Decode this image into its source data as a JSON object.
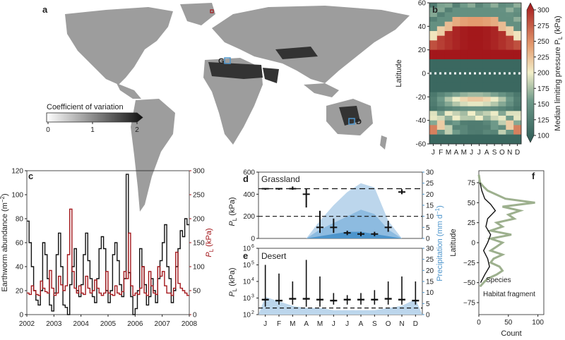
{
  "panel_labels": {
    "a": "a",
    "b": "b",
    "c": "c",
    "d": "d",
    "e": "e",
    "f": "f"
  },
  "colors": {
    "earthworm": "#111111",
    "limiting_pressure": "#a3171b",
    "precip": "#4d95cc",
    "precip_light": "#bcd6ec",
    "grass": "#9db08e",
    "heat_low": "#2e5b55",
    "heat_high": "#a3171b"
  },
  "map_a": {
    "colorbar_label": "Coefficient of variation",
    "colorbar_ticks": [
      "0",
      "1",
      "2"
    ],
    "site_labels": [
      "G",
      "D"
    ]
  },
  "chart_data": [
    {
      "panel": "b",
      "type": "heatmap",
      "months": [
        "J",
        "F",
        "M",
        "A",
        "M",
        "J",
        "J",
        "A",
        "S",
        "O",
        "N",
        "D"
      ],
      "ylabel": "Latitude",
      "ylim": [
        -60,
        60
      ],
      "yticks": [
        "60",
        "40",
        "20",
        "0",
        "-20",
        "-40",
        "-60"
      ],
      "colorbar_label": "Median limiting pressure P",
      "colorbar_label_sub": "L",
      "colorbar_unit": " (kPa)",
      "colorbar_ticks": [
        "300",
        "275",
        "250",
        "225",
        "200",
        "175",
        "150",
        "125",
        "100"
      ],
      "crange": [
        100,
        300
      ]
    },
    {
      "panel": "c",
      "type": "line",
      "x_ticks": [
        "2002",
        "2003",
        "2004",
        "2005",
        "2006",
        "2007",
        "2008"
      ],
      "xlim": [
        2002,
        2008
      ],
      "ylabel_left": "Earthworm abundance (m",
      "ylabel_left_sup": "−2",
      "ylabel_left_end": ")",
      "ylim_left": [
        0,
        120
      ],
      "yticks_left": [
        "0",
        "20",
        "40",
        "60",
        "80",
        "100",
        "120"
      ],
      "ylabel_right_p": "P",
      "ylabel_right_sub": "L",
      "ylabel_right_end": " (kPa)",
      "ylim_right": [
        0,
        300
      ],
      "yticks_right": [
        "0",
        "50",
        "100",
        "150",
        "200",
        "250",
        "300"
      ],
      "series": [
        {
          "name": "earthworm",
          "axis": "left",
          "values": [
            78,
            60,
            40,
            20,
            12,
            8,
            20,
            60,
            50,
            30,
            8,
            3,
            18,
            50,
            68,
            40,
            8,
            6,
            0,
            25,
            40,
            55,
            20,
            15,
            25,
            50,
            68,
            45,
            30,
            15,
            10,
            30,
            55,
            65,
            55,
            20,
            10,
            20,
            50,
            60,
            45,
            25,
            15,
            30,
            117,
            35,
            15,
            0,
            5,
            20,
            55,
            40,
            25,
            8,
            15,
            30,
            20,
            10,
            30,
            45,
            60,
            75,
            40,
            30,
            10,
            20,
            40,
            55,
            70,
            65,
            80,
            75
          ]
        },
        {
          "name": "limiting_pressure",
          "axis": "right",
          "values": [
            45,
            42,
            60,
            50,
            42,
            40,
            70,
            55,
            48,
            45,
            92,
            55,
            40,
            45,
            80,
            62,
            50,
            60,
            125,
            220,
            90,
            55,
            45,
            60,
            45,
            42,
            80,
            55,
            45,
            50,
            72,
            55,
            45,
            40,
            45,
            90,
            45,
            42,
            40,
            60,
            45,
            42,
            48,
            90,
            75,
            170,
            60,
            40,
            45,
            42,
            55,
            100,
            45,
            40,
            90,
            60,
            45,
            42,
            100,
            80,
            90,
            60,
            45,
            45,
            40,
            55,
            130,
            65,
            55,
            50,
            45,
            40
          ]
        }
      ]
    },
    {
      "panel": "d",
      "type": "area",
      "title": "Grassland",
      "months": [
        "J",
        "F",
        "M",
        "A",
        "M",
        "J",
        "J",
        "A",
        "S",
        "O",
        "N",
        "D"
      ],
      "ylabel_left_p": "P",
      "ylabel_left_sub": "L",
      "ylabel_left_end": " (kPa)",
      "ylim_left": [
        0,
        600
      ],
      "yticks_left": [
        "0",
        "200",
        "400",
        "600"
      ],
      "ylim_right": [
        0,
        30
      ],
      "yticks_right": [
        "0",
        "5",
        "10",
        "15",
        "20",
        "25",
        "30"
      ],
      "upper_dash": 450,
      "lower_dash": 200,
      "box_medians": [
        450,
        450,
        450,
        400,
        100,
        100,
        50,
        40,
        40,
        100,
        420,
        null
      ],
      "box_low": [
        440,
        440,
        440,
        280,
        50,
        50,
        30,
        20,
        20,
        60,
        400,
        null
      ],
      "box_high": [
        455,
        455,
        470,
        450,
        250,
        180,
        70,
        60,
        60,
        160,
        445,
        null
      ],
      "precip_high": [
        0,
        0,
        0,
        0,
        8,
        15,
        21,
        25,
        23,
        8,
        0,
        0
      ],
      "precip_mid": [
        0,
        0,
        0,
        0,
        4,
        7,
        10,
        13,
        11,
        4,
        0,
        0
      ],
      "precip_low": [
        0,
        0,
        0,
        0,
        1,
        2,
        3,
        3,
        2,
        1,
        0,
        0
      ]
    },
    {
      "panel": "e",
      "type": "area",
      "title": "Desert",
      "months": [
        "J",
        "F",
        "M",
        "A",
        "M",
        "J",
        "J",
        "A",
        "S",
        "O",
        "N",
        "D"
      ],
      "ylabel_left_p": "P",
      "ylabel_left_sub": "L",
      "ylabel_left_end": " (kPa)",
      "ylim_left_log": [
        2,
        6
      ],
      "yticks_left": [
        "10",
        "10",
        "10",
        "10",
        "10"
      ],
      "yticks_left_exp": [
        "2",
        "3",
        "4",
        "5",
        "6"
      ],
      "ylabel_right": "Precipitation (mm d",
      "ylabel_right_sup": "−1",
      "ylabel_right_end": ")",
      "ylim_right": [
        0,
        30
      ],
      "yticks_right": [
        "0",
        "5",
        "10",
        "15",
        "20",
        "25",
        "30"
      ],
      "dash_value": 250,
      "box_medians": [
        800,
        700,
        900,
        900,
        800,
        700,
        800,
        800,
        800,
        900,
        800,
        700
      ],
      "whisker_low": [
        300,
        400,
        400,
        300,
        300,
        400,
        400,
        400,
        400,
        400,
        400,
        400
      ],
      "whisker_high": [
        100000,
        30000,
        10000,
        200000,
        20000,
        2000,
        1500,
        2000,
        3000,
        10000,
        20000,
        10000
      ],
      "precip": [
        8,
        6,
        4,
        3,
        3,
        2,
        2,
        2,
        2,
        3,
        4,
        7
      ]
    },
    {
      "panel": "f",
      "type": "line",
      "xlabel": "Count",
      "xlim": [
        0,
        110
      ],
      "xticks": [
        "0",
        "50",
        "100"
      ],
      "ylabel": "Latitude",
      "ylim": [
        -90,
        90
      ],
      "yticks": [
        "75",
        "50",
        "25",
        "0",
        "−25",
        "−50",
        "−75"
      ],
      "series": [
        {
          "name": "Species",
          "lat": [
            75,
            65,
            55,
            48,
            40,
            30,
            20,
            10,
            0,
            -10,
            -20,
            -30,
            -40,
            -50
          ],
          "count": [
            2,
            5,
            10,
            20,
            28,
            15,
            12,
            20,
            15,
            8,
            15,
            18,
            10,
            3
          ]
        },
        {
          "name": "Habitat fragment",
          "lat": [
            85,
            75,
            70,
            65,
            60,
            55,
            50,
            45,
            40,
            35,
            30,
            25,
            20,
            15,
            10,
            5,
            0,
            -5,
            -10,
            -15,
            -20,
            -25,
            -30,
            -35,
            -40,
            -45,
            -50,
            -55
          ],
          "count": [
            0,
            2,
            8,
            15,
            30,
            45,
            95,
            40,
            70,
            50,
            60,
            30,
            40,
            20,
            55,
            20,
            40,
            30,
            20,
            40,
            25,
            20,
            35,
            40,
            30,
            15,
            8,
            2
          ]
        }
      ]
    }
  ]
}
